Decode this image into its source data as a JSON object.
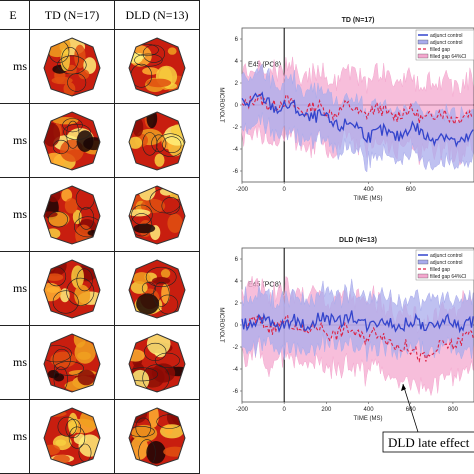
{
  "table": {
    "col_time": "E",
    "col_td": "TD (N=17)",
    "col_dld": "DLD (N=13)",
    "time_unit": "ms"
  },
  "annotation": "DLD late effect",
  "colors": {
    "adjunct": "#3344cc",
    "adjunct_ci": "#a9acec",
    "filled": "#dd2244",
    "filled_ci": "#f4a8cf"
  },
  "chart_data": [
    {
      "type": "line",
      "title": "TD (N=17)",
      "channel_label": "E45 (PO8)",
      "ylabel": "MICROVOLT",
      "xlabel": "TIME (MS)",
      "xlim": [
        -200,
        900
      ],
      "ylim": [
        -7,
        7
      ],
      "xticks": [
        -200,
        0,
        400,
        600
      ],
      "yticks": [
        -6,
        -4,
        -2,
        0,
        2,
        4,
        6
      ],
      "legend": [
        "adjunct control",
        "adjunct control",
        "filled gap",
        "filled gap 64%CI"
      ],
      "legend_position": "top-right",
      "series": [
        {
          "name": "adjunct control",
          "x": [
            -200,
            -100,
            0,
            100,
            200,
            300,
            400,
            500,
            600,
            700,
            800,
            900
          ],
          "y": [
            0.5,
            0.3,
            -0.2,
            -0.8,
            -1.5,
            -1.8,
            -2.5,
            -2.8,
            -2.2,
            -2.8,
            -3.2,
            -3.0
          ]
        },
        {
          "name": "filled gap",
          "x": [
            -200,
            -100,
            0,
            100,
            200,
            300,
            400,
            500,
            600,
            700,
            800,
            900
          ],
          "y": [
            0.2,
            0.3,
            0.1,
            -0.3,
            -0.5,
            -0.4,
            -0.6,
            -0.7,
            -0.8,
            -1.0,
            -0.9,
            -1.1
          ]
        }
      ]
    },
    {
      "type": "line",
      "title": "DLD (N=13)",
      "channel_label": "E45 (PO8)",
      "ylabel": "MICROVOLT",
      "xlabel": "TIME (MS)",
      "xlim": [
        -200,
        900
      ],
      "ylim": [
        -7,
        7
      ],
      "xticks": [
        -200,
        0,
        200,
        400,
        600,
        800
      ],
      "yticks": [
        -6,
        -4,
        -2,
        0,
        2,
        4,
        6
      ],
      "legend": [
        "adjunct control",
        "adjunct control",
        "filled gap",
        "filled gap 64%CI"
      ],
      "legend_position": "top-right",
      "series": [
        {
          "name": "adjunct control",
          "x": [
            -200,
            -100,
            0,
            100,
            200,
            300,
            400,
            500,
            600,
            700,
            800,
            900
          ],
          "y": [
            0.5,
            0.3,
            0.0,
            0.3,
            0.5,
            0.6,
            0.3,
            0.2,
            0.1,
            0.0,
            0.3,
            0.0
          ]
        },
        {
          "name": "filled gap",
          "x": [
            -200,
            -100,
            0,
            100,
            200,
            300,
            400,
            500,
            600,
            700,
            800,
            900
          ],
          "y": [
            0.2,
            0.1,
            0.0,
            -0.3,
            -0.5,
            -0.7,
            -0.8,
            -1.2,
            -2.5,
            -2.8,
            -1.5,
            -1.0
          ]
        }
      ]
    }
  ]
}
